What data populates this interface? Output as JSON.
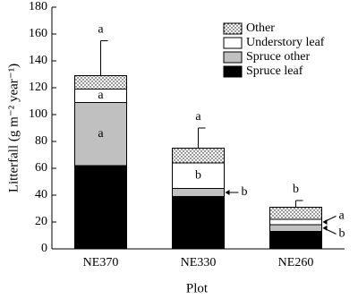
{
  "chart_data": {
    "type": "stacked_bar",
    "categories": [
      "NE370",
      "NE330",
      "NE260"
    ],
    "series": [
      {
        "name": "Spruce leaf",
        "color": "#000000",
        "values": [
          62,
          39,
          13
        ],
        "letters": [
          "a",
          "a",
          "b"
        ]
      },
      {
        "name": "Spruce other",
        "color": "#c0c0c0",
        "values": [
          47,
          6,
          5
        ],
        "letters": [
          "a",
          "b",
          "b"
        ]
      },
      {
        "name": "Understory leaf",
        "color": "#ffffff",
        "values": [
          10,
          19,
          4
        ],
        "letters": [
          "a",
          "b",
          "a"
        ]
      },
      {
        "name": "Other",
        "color": "#ffffff",
        "pattern": "dots",
        "values": [
          10,
          11,
          9
        ],
        "errors": [
          26,
          15,
          5
        ],
        "letters": [
          "a",
          "a",
          "b"
        ]
      }
    ],
    "xlabel": "Plot",
    "ylabel": "Litterfall (g m⁻² year⁻¹)",
    "ylim": [
      0,
      180
    ],
    "yticks": [
      0,
      20,
      40,
      60,
      80,
      100,
      120,
      140,
      160,
      180
    ],
    "legend": "upper right"
  }
}
